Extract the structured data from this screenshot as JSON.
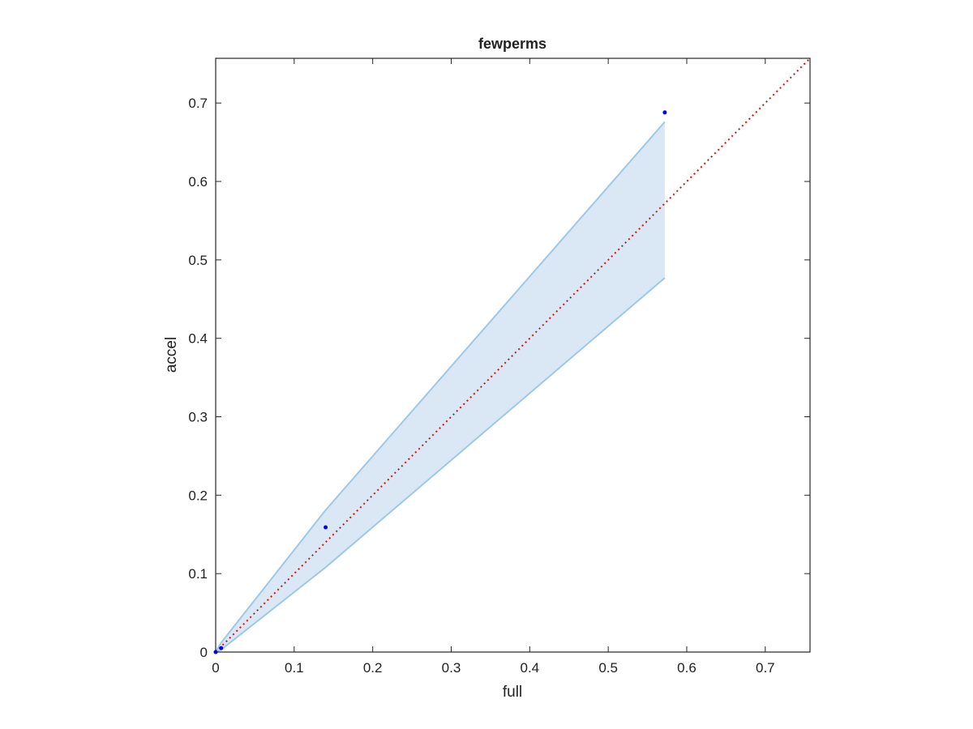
{
  "chart_data": {
    "type": "scatter",
    "title": "fewperms",
    "x_label": "full",
    "y_label": "accel",
    "x": [
      0,
      0.007,
      0.14,
      0.572
    ],
    "y": [
      0,
      0.005,
      0.159,
      0.688
    ],
    "color": "#0000ff",
    "band": {
      "x": [
        0,
        0.007,
        0.14,
        0.572
      ],
      "lower": [
        0,
        0.003,
        0.108,
        0.477
      ],
      "upper": [
        0,
        0.012,
        0.181,
        0.676
      ],
      "color": "#9fc8e6",
      "fill": "#d9e8f4"
    },
    "diagonal": {
      "x": [
        0,
        0.757
      ],
      "y": [
        0,
        0.757
      ],
      "color": "#ff0000"
    },
    "xlim": [
      0,
      0.757
    ],
    "ylim": [
      0,
      0.757
    ],
    "xticks": [
      0,
      0.1,
      0.2,
      0.3,
      0.4,
      0.5,
      0.6,
      0.7
    ],
    "yticks": [
      0,
      0.1,
      0.2,
      0.3,
      0.4,
      0.5,
      0.6,
      0.7
    ]
  }
}
